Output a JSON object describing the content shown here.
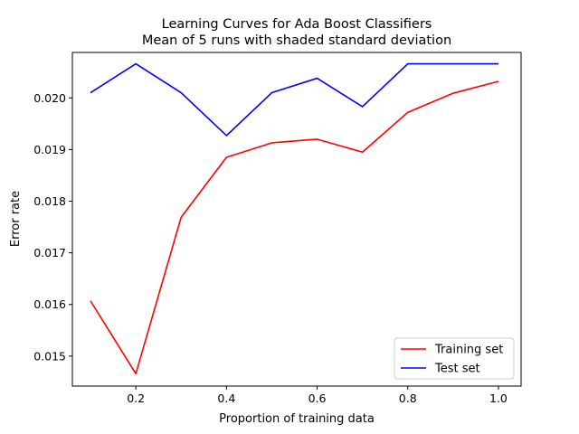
{
  "chart_data": {
    "type": "line",
    "title": "Learning Curves for Ada Boost Classifiers",
    "subtitle": "Mean of 5 runs with shaded standard deviation",
    "xlabel": "Proportion of training data",
    "ylabel": "Error rate",
    "xlim": [
      0.06,
      1.05
    ],
    "ylim": [
      0.01442,
      0.02088
    ],
    "x_ticks": [
      "0.2",
      "0.4",
      "0.6",
      "0.8",
      "1.0"
    ],
    "y_ticks": [
      "0.015",
      "0.016",
      "0.017",
      "0.018",
      "0.019",
      "0.020"
    ],
    "x": [
      0.1,
      0.2,
      0.3,
      0.4,
      0.5,
      0.6,
      0.7,
      0.8,
      0.9,
      1.0
    ],
    "series": [
      {
        "name": "Training set",
        "color": "#ff0000",
        "values": [
          0.01607,
          0.01466,
          0.01769,
          0.01885,
          0.01913,
          0.0192,
          0.01895,
          0.01972,
          0.02009,
          0.02032
        ]
      },
      {
        "name": "Test set",
        "color": "#0000ff",
        "values": [
          0.0201,
          0.02066,
          0.0201,
          0.01927,
          0.0201,
          0.02038,
          0.01983,
          0.02066,
          0.02066,
          0.02066
        ]
      }
    ],
    "grid": false,
    "legend_position": "bottom-right"
  }
}
